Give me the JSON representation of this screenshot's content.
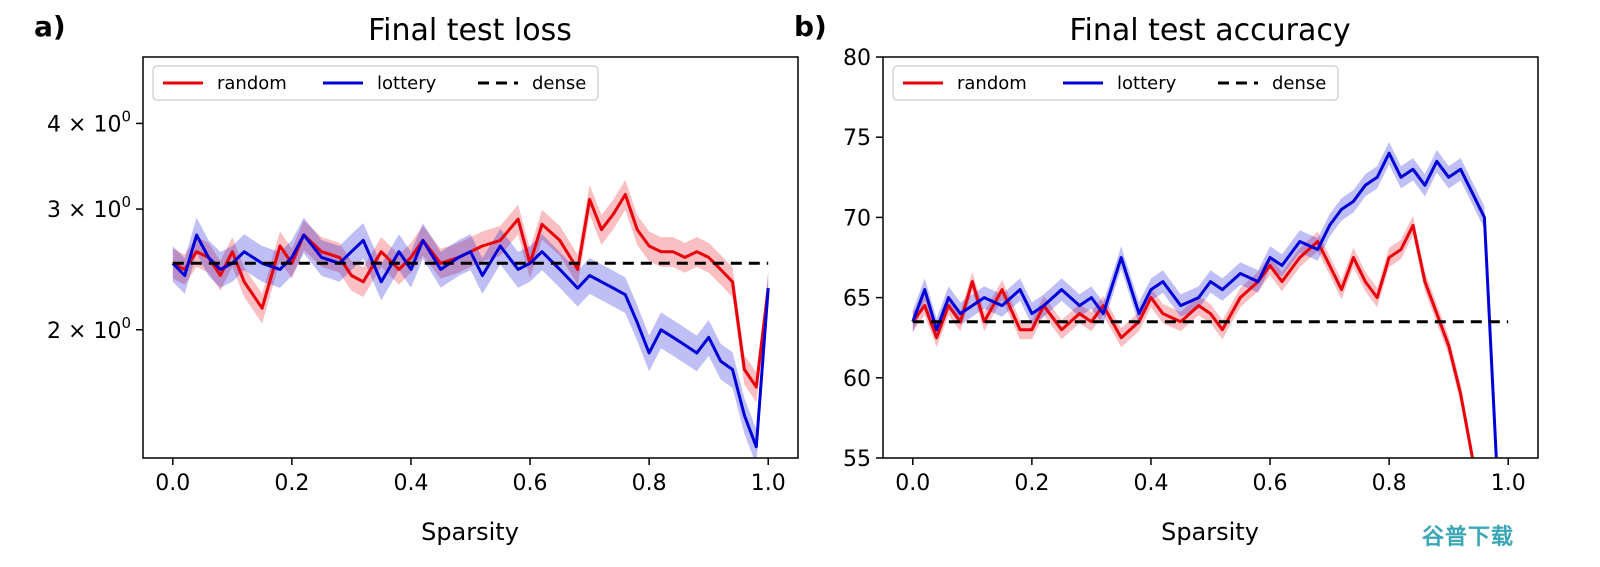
{
  "figure": {
    "watermark": "谷普下载"
  },
  "chart_data": [
    {
      "type": "line",
      "panel_label": "a)",
      "title": "Final test loss",
      "xlabel": "Sparsity",
      "ylabel": "",
      "yscale": "log",
      "xlim": [
        -0.05,
        1.05
      ],
      "ylim": [
        1.3,
        5.0
      ],
      "xticks": [
        0.0,
        0.2,
        0.4,
        0.6,
        0.8,
        1.0
      ],
      "xtick_labels": [
        "0.0",
        "0.2",
        "0.4",
        "0.6",
        "0.8",
        "1.0"
      ],
      "yticks": [
        2,
        3,
        4
      ],
      "ytick_labels": [
        {
          "base": "2 × 10",
          "exp": "0"
        },
        {
          "base": "3 × 10",
          "exp": "0"
        },
        {
          "base": "4 × 10",
          "exp": "0"
        }
      ],
      "legend": {
        "position": "top-left",
        "entries": [
          "random",
          "lottery",
          "dense"
        ]
      },
      "series": [
        {
          "name": "random",
          "color": "#e8000b",
          "style": "solid",
          "band": true,
          "x": [
            0.0,
            0.02,
            0.04,
            0.06,
            0.08,
            0.1,
            0.12,
            0.15,
            0.18,
            0.2,
            0.22,
            0.25,
            0.28,
            0.3,
            0.32,
            0.35,
            0.38,
            0.4,
            0.42,
            0.45,
            0.48,
            0.5,
            0.52,
            0.55,
            0.58,
            0.6,
            0.62,
            0.65,
            0.68,
            0.7,
            0.72,
            0.74,
            0.76,
            0.78,
            0.8,
            0.82,
            0.84,
            0.86,
            0.88,
            0.9,
            0.92,
            0.94,
            0.96,
            0.98,
            1.0
          ],
          "y": [
            2.5,
            2.45,
            2.6,
            2.55,
            2.4,
            2.6,
            2.35,
            2.15,
            2.65,
            2.5,
            2.75,
            2.6,
            2.55,
            2.4,
            2.35,
            2.6,
            2.45,
            2.55,
            2.7,
            2.5,
            2.55,
            2.6,
            2.65,
            2.7,
            2.9,
            2.5,
            2.85,
            2.7,
            2.45,
            3.1,
            2.8,
            2.95,
            3.15,
            2.8,
            2.65,
            2.6,
            2.6,
            2.55,
            2.6,
            2.55,
            2.45,
            2.35,
            1.75,
            1.65,
            2.3
          ],
          "band_half_width": 0.05
        },
        {
          "name": "lottery",
          "color": "#0000d8",
          "style": "solid",
          "band": true,
          "x": [
            0.0,
            0.02,
            0.04,
            0.06,
            0.08,
            0.1,
            0.12,
            0.15,
            0.18,
            0.2,
            0.22,
            0.25,
            0.28,
            0.3,
            0.32,
            0.35,
            0.38,
            0.4,
            0.42,
            0.45,
            0.48,
            0.5,
            0.52,
            0.55,
            0.58,
            0.6,
            0.62,
            0.65,
            0.68,
            0.7,
            0.72,
            0.74,
            0.76,
            0.78,
            0.8,
            0.82,
            0.84,
            0.86,
            0.88,
            0.9,
            0.92,
            0.94,
            0.96,
            0.98,
            1.0
          ],
          "y": [
            2.5,
            2.4,
            2.75,
            2.55,
            2.45,
            2.5,
            2.6,
            2.5,
            2.45,
            2.55,
            2.75,
            2.55,
            2.5,
            2.6,
            2.7,
            2.35,
            2.6,
            2.45,
            2.7,
            2.45,
            2.55,
            2.6,
            2.4,
            2.65,
            2.45,
            2.5,
            2.6,
            2.45,
            2.3,
            2.4,
            2.35,
            2.3,
            2.25,
            2.05,
            1.85,
            2.0,
            1.95,
            1.9,
            1.85,
            1.95,
            1.8,
            1.75,
            1.5,
            1.35,
            2.3
          ],
          "band_half_width": 0.06
        },
        {
          "name": "dense",
          "color": "#000000",
          "style": "dashed",
          "band": false,
          "x": [
            0.0,
            1.0
          ],
          "y": [
            2.5,
            2.5
          ]
        }
      ]
    },
    {
      "type": "line",
      "panel_label": "b)",
      "title": "Final test accuracy",
      "xlabel": "Sparsity",
      "ylabel": "",
      "yscale": "linear",
      "xlim": [
        -0.05,
        1.05
      ],
      "ylim": [
        55,
        80
      ],
      "xticks": [
        0.0,
        0.2,
        0.4,
        0.6,
        0.8,
        1.0
      ],
      "xtick_labels": [
        "0.0",
        "0.2",
        "0.4",
        "0.6",
        "0.8",
        "1.0"
      ],
      "yticks": [
        55,
        60,
        65,
        70,
        75,
        80
      ],
      "ytick_labels": [
        "55",
        "60",
        "65",
        "70",
        "75",
        "80"
      ],
      "legend": {
        "position": "top-left",
        "entries": [
          "random",
          "lottery",
          "dense"
        ]
      },
      "series": [
        {
          "name": "random",
          "color": "#e8000b",
          "style": "solid",
          "band": true,
          "x": [
            0.0,
            0.02,
            0.04,
            0.06,
            0.08,
            0.1,
            0.12,
            0.15,
            0.18,
            0.2,
            0.22,
            0.25,
            0.28,
            0.3,
            0.32,
            0.35,
            0.38,
            0.4,
            0.42,
            0.45,
            0.48,
            0.5,
            0.52,
            0.55,
            0.58,
            0.6,
            0.62,
            0.65,
            0.68,
            0.7,
            0.72,
            0.74,
            0.76,
            0.78,
            0.8,
            0.82,
            0.84,
            0.86,
            0.88,
            0.9,
            0.92,
            0.94
          ],
          "y": [
            63.5,
            64.5,
            62.5,
            64.5,
            63.5,
            66.0,
            63.5,
            65.5,
            63.0,
            63.0,
            64.5,
            63.0,
            64.0,
            63.5,
            64.5,
            62.5,
            63.5,
            65.0,
            64.0,
            63.5,
            64.5,
            64.0,
            63.0,
            65.0,
            66.0,
            67.0,
            66.0,
            67.5,
            68.5,
            67.0,
            65.5,
            67.5,
            66.0,
            65.0,
            67.5,
            68.0,
            69.5,
            66.0,
            64.0,
            62.0,
            59.0,
            55.0
          ],
          "band_half_width": 0.6
        },
        {
          "name": "lottery",
          "color": "#0000d8",
          "style": "solid",
          "band": true,
          "x": [
            0.0,
            0.02,
            0.04,
            0.06,
            0.08,
            0.1,
            0.12,
            0.15,
            0.18,
            0.2,
            0.22,
            0.25,
            0.28,
            0.3,
            0.32,
            0.35,
            0.38,
            0.4,
            0.42,
            0.45,
            0.48,
            0.5,
            0.52,
            0.55,
            0.58,
            0.6,
            0.62,
            0.65,
            0.68,
            0.7,
            0.72,
            0.74,
            0.76,
            0.78,
            0.8,
            0.82,
            0.84,
            0.86,
            0.88,
            0.9,
            0.92,
            0.94,
            0.96,
            0.98
          ],
          "y": [
            63.5,
            65.5,
            63.0,
            65.0,
            64.0,
            64.5,
            65.0,
            64.5,
            65.5,
            64.0,
            64.5,
            65.5,
            64.5,
            65.0,
            64.0,
            67.5,
            64.0,
            65.5,
            66.0,
            64.5,
            65.0,
            66.0,
            65.5,
            66.5,
            66.0,
            67.5,
            67.0,
            68.5,
            68.0,
            69.5,
            70.5,
            71.0,
            72.0,
            72.5,
            74.0,
            72.5,
            73.0,
            72.0,
            73.5,
            72.5,
            73.0,
            71.5,
            70.0,
            55.0
          ],
          "band_half_width": 0.7
        },
        {
          "name": "dense",
          "color": "#000000",
          "style": "dashed",
          "band": false,
          "x": [
            0.0,
            1.0
          ],
          "y": [
            63.5,
            63.5
          ]
        }
      ]
    }
  ]
}
